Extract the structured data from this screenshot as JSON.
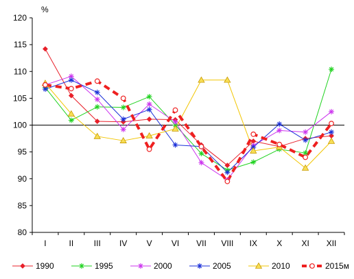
{
  "chart_data": {
    "type": "line",
    "ylabel": "%",
    "categories": [
      "I",
      "II",
      "III",
      "IV",
      "V",
      "VI",
      "VII",
      "VIII",
      "IX",
      "X",
      "XI",
      "XII"
    ],
    "ylim": [
      80,
      120
    ],
    "yticks": [
      80,
      85,
      90,
      95,
      100,
      105,
      110,
      115,
      120
    ],
    "reference_line": 100,
    "grid": false,
    "legend_position": "bottom",
    "series": [
      {
        "name": "1990",
        "color": "#e8202a",
        "marker": "diamond",
        "values": [
          114.2,
          105.5,
          100.7,
          100.6,
          101.1,
          101.0,
          96.3,
          92.5,
          97.0,
          96.0,
          97.5,
          98.0
        ]
      },
      {
        "name": "1995",
        "color": "#1fd21f",
        "marker": "asterisk",
        "values": [
          107.0,
          100.9,
          103.4,
          103.3,
          105.3,
          100.0,
          94.7,
          91.6,
          93.1,
          95.5,
          94.8,
          110.4
        ]
      },
      {
        "name": "2000",
        "color": "#cc33ee",
        "marker": "asterisk",
        "values": [
          107.5,
          109.1,
          104.8,
          99.2,
          103.9,
          100.6,
          93.0,
          89.8,
          96.2,
          99.0,
          98.7,
          102.5
        ]
      },
      {
        "name": "2005",
        "color": "#1a2fd8",
        "marker": "asterisk",
        "values": [
          106.7,
          108.4,
          106.1,
          101.1,
          102.9,
          96.3,
          96.0,
          91.2,
          95.9,
          100.2,
          97.2,
          98.7
        ]
      },
      {
        "name": "2010",
        "color": "#f2c500",
        "marker": "triangle",
        "values": [
          107.8,
          102.1,
          97.9,
          97.1,
          98.0,
          99.3,
          108.4,
          108.4,
          95.2,
          95.9,
          92.0,
          97.0
        ]
      },
      {
        "name": "2015м",
        "color": "#ee2020",
        "marker": "circle",
        "dashed": true,
        "values": [
          107.5,
          106.8,
          108.2,
          105.0,
          95.5,
          102.8,
          96.0,
          89.5,
          98.3,
          96.4,
          94.0,
          100.3
        ]
      }
    ]
  }
}
